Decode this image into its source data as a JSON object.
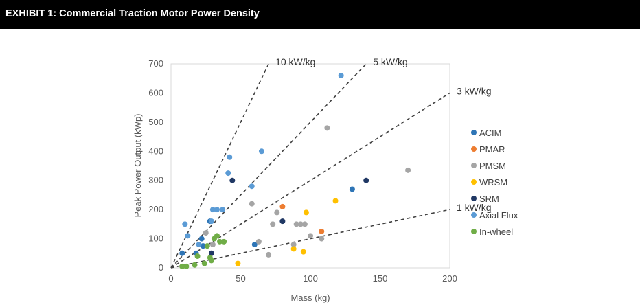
{
  "header": {
    "title": "EXHIBIT 1: Commercial Traction Motor Power Density"
  },
  "chart_data": {
    "type": "scatter",
    "title": "",
    "xlabel": "Mass (kg)",
    "ylabel": "Peak Power Output (kWp)",
    "xlim": [
      0,
      200
    ],
    "ylim": [
      0,
      700
    ],
    "xticks": [
      0,
      50,
      100,
      150,
      200
    ],
    "yticks": [
      0,
      100,
      200,
      300,
      400,
      500,
      600,
      700
    ],
    "grid": false,
    "legend_position": "right",
    "reference_lines": [
      {
        "label": "10 kW/kg",
        "slope": 10
      },
      {
        "label": "5 kW/kg",
        "slope": 5
      },
      {
        "label": "3 kW/kg",
        "slope": 3
      },
      {
        "label": "1 kW/kg",
        "slope": 1
      }
    ],
    "series": [
      {
        "name": "ACIM",
        "color": "#2e75b6",
        "points": [
          [
            8,
            50
          ],
          [
            18,
            50
          ],
          [
            22,
            100
          ],
          [
            23,
            75
          ],
          [
            28,
            160
          ],
          [
            60,
            80
          ],
          [
            130,
            270
          ]
        ]
      },
      {
        "name": "PMAR",
        "color": "#ed7d31",
        "points": [
          [
            80,
            210
          ],
          [
            108,
            125
          ]
        ]
      },
      {
        "name": "PMSM",
        "color": "#a5a5a5",
        "points": [
          [
            25,
            120
          ],
          [
            30,
            80
          ],
          [
            58,
            220
          ],
          [
            63,
            90
          ],
          [
            70,
            45
          ],
          [
            73,
            150
          ],
          [
            76,
            190
          ],
          [
            88,
            80
          ],
          [
            90,
            150
          ],
          [
            93,
            150
          ],
          [
            96,
            150
          ],
          [
            100,
            110
          ],
          [
            108,
            100
          ],
          [
            112,
            480
          ],
          [
            170,
            335
          ]
        ]
      },
      {
        "name": "WRSM",
        "color": "#ffc000",
        "points": [
          [
            48,
            15
          ],
          [
            88,
            65
          ],
          [
            95,
            55
          ],
          [
            97,
            190
          ],
          [
            118,
            230
          ]
        ]
      },
      {
        "name": "SRM",
        "color": "#203864",
        "points": [
          [
            29,
            50
          ],
          [
            44,
            300
          ],
          [
            80,
            160
          ],
          [
            140,
            300
          ]
        ]
      },
      {
        "name": "Axial Flux",
        "color": "#5b9bd5",
        "points": [
          [
            10,
            150
          ],
          [
            12,
            110
          ],
          [
            20,
            80
          ],
          [
            29,
            160
          ],
          [
            30,
            200
          ],
          [
            33,
            200
          ],
          [
            37,
            200
          ],
          [
            41,
            325
          ],
          [
            42,
            380
          ],
          [
            58,
            280
          ],
          [
            65,
            400
          ],
          [
            122,
            660
          ]
        ]
      },
      {
        "name": "In-wheel",
        "color": "#70ad47",
        "points": [
          [
            8,
            5
          ],
          [
            11,
            5
          ],
          [
            17,
            10
          ],
          [
            19,
            40
          ],
          [
            24,
            15
          ],
          [
            26,
            75
          ],
          [
            28,
            35
          ],
          [
            29,
            25
          ],
          [
            31,
            100
          ],
          [
            33,
            110
          ],
          [
            35,
            90
          ],
          [
            38,
            90
          ]
        ]
      }
    ]
  }
}
